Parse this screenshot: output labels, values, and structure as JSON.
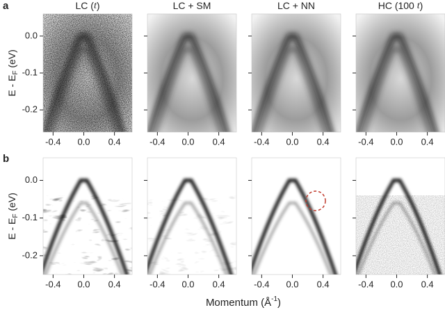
{
  "figure": {
    "row_labels": [
      "a",
      "b"
    ],
    "panel_titles": [
      [
        "LC (",
        "t",
        ")"
      ],
      [
        "LC + SM"
      ],
      [
        "LC + NN"
      ],
      [
        "HC (100 ",
        "t",
        ")"
      ]
    ],
    "y_label": [
      "E - E",
      "F",
      " (eV)"
    ],
    "x_label": [
      "Momentum (Å",
      "-1",
      ")"
    ],
    "xlim": [
      -0.53,
      0.63
    ],
    "xticks": [
      -0.4,
      {
        "value": 0,
        "label": "0.0"
      },
      0.4
    ],
    "rows": [
      {
        "ylim": [
          -0.26,
          0.06
        ],
        "yticks": [
          {
            "value": 0,
            "label": "0.0"
          },
          -0.1,
          -0.2
        ]
      },
      {
        "ylim": [
          -0.25,
          0.06
        ],
        "yticks": [
          {
            "value": 0,
            "label": "0.0"
          },
          -0.1,
          -0.2
        ]
      }
    ]
  }
}
